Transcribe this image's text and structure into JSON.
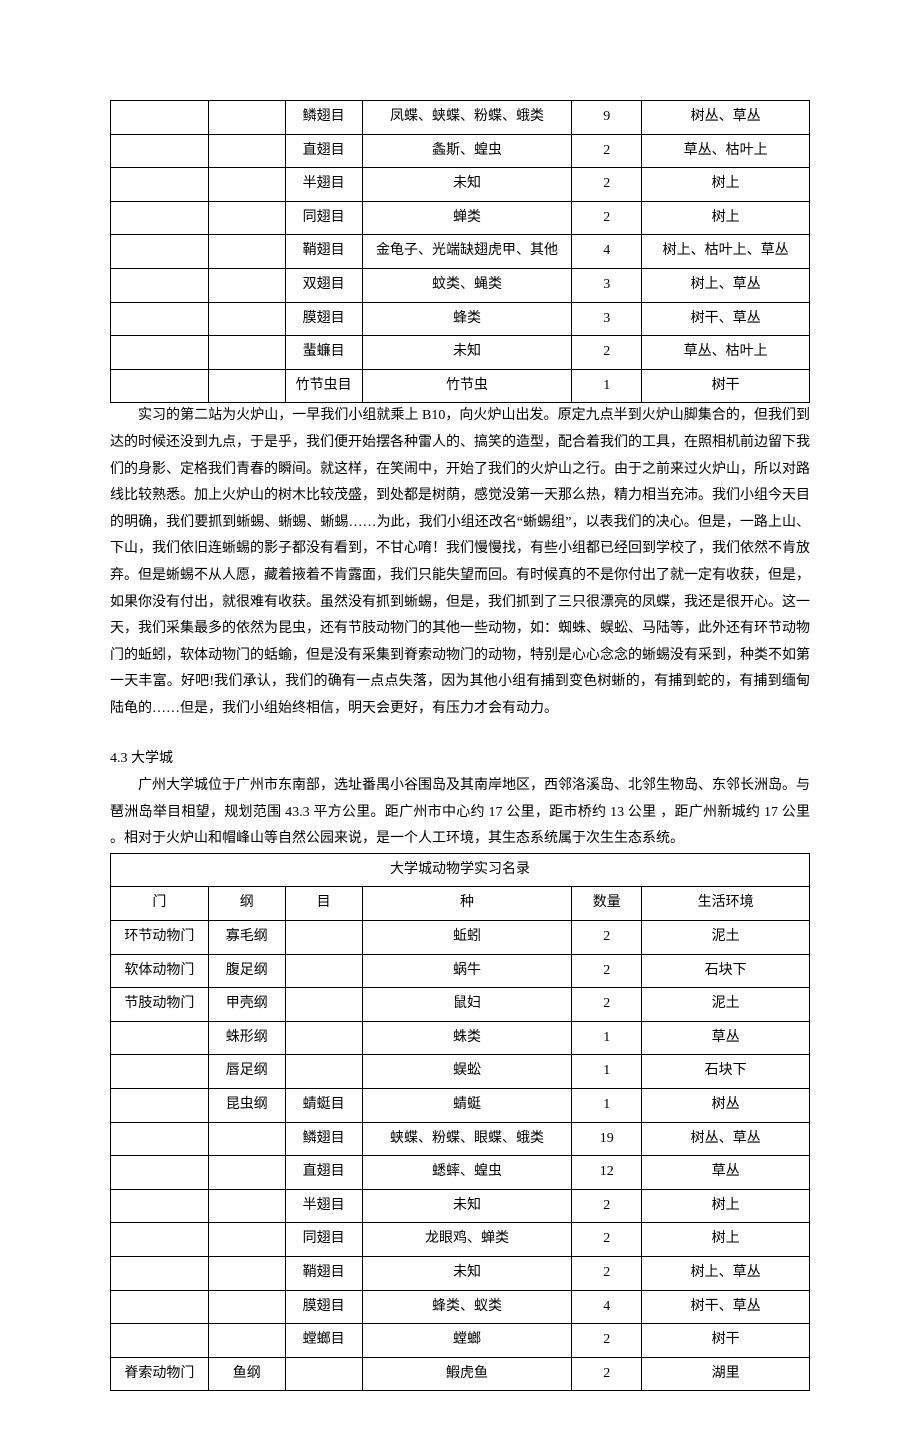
{
  "table1": {
    "rows": [
      {
        "phylum": "",
        "class": "",
        "order": "鳞翅目",
        "species": "凤蝶、蛱蝶、粉蝶、蛾类",
        "count": "9",
        "habitat": "树丛、草丛"
      },
      {
        "phylum": "",
        "class": "",
        "order": "直翅目",
        "species": "螽斯、蝗虫",
        "count": "2",
        "habitat": "草丛、枯叶上"
      },
      {
        "phylum": "",
        "class": "",
        "order": "半翅目",
        "species": "未知",
        "count": "2",
        "habitat": "树上"
      },
      {
        "phylum": "",
        "class": "",
        "order": "同翅目",
        "species": "蝉类",
        "count": "2",
        "habitat": "树上"
      },
      {
        "phylum": "",
        "class": "",
        "order": "鞘翅目",
        "species": "金龟子、光端缺翅虎甲、其他",
        "count": "4",
        "habitat": "树上、枯叶上、草丛"
      },
      {
        "phylum": "",
        "class": "",
        "order": "双翅目",
        "species": "蚊类、蝇类",
        "count": "3",
        "habitat": "树上、草丛"
      },
      {
        "phylum": "",
        "class": "",
        "order": "膜翅目",
        "species": "蜂类",
        "count": "3",
        "habitat": "树干、草丛"
      },
      {
        "phylum": "",
        "class": "",
        "order": "蜚蠊目",
        "species": "未知",
        "count": "2",
        "habitat": "草丛、枯叶上"
      },
      {
        "phylum": "",
        "class": "",
        "order": "竹节虫目",
        "species": "竹节虫",
        "count": "1",
        "habitat": "树干"
      }
    ]
  },
  "paragraph1": "实习的第二站为火炉山，一早我们小组就乘上 B10，向火炉山出发。原定九点半到火炉山脚集合的，但我们到达的时候还没到九点，于是乎，我们便开始摆各种雷人的、搞笑的造型，配合着我们的工具，在照相机前边留下我们的身影、定格我们青春的瞬间。就这样，在笑闹中，开始了我们的火炉山之行。由于之前来过火炉山，所以对路线比较熟悉。加上火炉山的树木比较茂盛，到处都是树荫，感觉没第一天那么热，精力相当充沛。我们小组今天目的明确，我们要抓到蜥蜴、蜥蜴、蜥蜴……为此，我们小组还改名“蜥蜴组”，以表我们的决心。但是，一路上山、下山，我们依旧连蜥蜴的影子都没有看到，不甘心唷！我们慢慢找，有些小组都已经回到学校了，我们依然不肯放弃。但是蜥蜴不从人愿，藏着掖着不肯露面，我们只能失望而回。有时候真的不是你付出了就一定有收获，但是，如果你没有付出，就很难有收获。虽然没有抓到蜥蜴，但是，我们抓到了三只很漂亮的凤蝶，我还是很开心。这一天，我们采集最多的依然为昆虫，还有节肢动物门的其他一些动物，如：蜘蛛、蜈蚣、马陆等，此外还有环节动物门的蚯蚓，软体动物门的蛞蝓，但是没有采集到脊索动物门的动物，特别是心心念念的蜥蜴没有采到，种类不如第一天丰富。好吧!我们承认，我们的确有一点点失落，因为其他小组有捕到变色树蜥的，有捕到蛇的，有捕到缅甸陆龟的……但是，我们小组始终相信，明天会更好，有压力才会有动力。",
  "section_heading": "4.3  大学城",
  "paragraph2": "广州大学城位于广州市东南部，选址番禺小谷围岛及其南岸地区，西邻洛溪岛、北邻生物岛、东邻长洲岛。与琶洲岛举目相望，规划范围 43.3 平方公里。距广州市中心约 17 公里，距市桥约 13 公里 ，距广州新城约 17 公里 。相对于火炉山和帽峰山等自然公园来说，是一个人工环境，其生态系统属于次生生态系统。",
  "table2": {
    "caption": "大学城动物学实习名录",
    "headers": {
      "phylum": "门",
      "class": "纲",
      "order": "目",
      "species": "种",
      "count": "数量",
      "habitat": "生活环境"
    },
    "rows": [
      {
        "phylum": "环节动物门",
        "class": "寡毛纲",
        "order": "",
        "species": "蚯蚓",
        "count": "2",
        "habitat": "泥土"
      },
      {
        "phylum": "软体动物门",
        "class": "腹足纲",
        "order": "",
        "species": "蜗牛",
        "count": "2",
        "habitat": "石块下"
      },
      {
        "phylum": "节肢动物门",
        "class": "甲壳纲",
        "order": "",
        "species": "鼠妇",
        "count": "2",
        "habitat": "泥土"
      },
      {
        "phylum": "",
        "class": "蛛形纲",
        "order": "",
        "species": "蛛类",
        "count": "1",
        "habitat": "草丛"
      },
      {
        "phylum": "",
        "class": "唇足纲",
        "order": "",
        "species": "蜈蚣",
        "count": "1",
        "habitat": "石块下"
      },
      {
        "phylum": "",
        "class": "昆虫纲",
        "order": "蜻蜓目",
        "species": "蜻蜓",
        "count": "1",
        "habitat": "树丛"
      },
      {
        "phylum": "",
        "class": "",
        "order": "鳞翅目",
        "species": "蛱蝶、粉蝶、眼蝶、蛾类",
        "count": "19",
        "habitat": "树丛、草丛"
      },
      {
        "phylum": "",
        "class": "",
        "order": "直翅目",
        "species": "蟋蟀、蝗虫",
        "count": "12",
        "habitat": "草丛"
      },
      {
        "phylum": "",
        "class": "",
        "order": "半翅目",
        "species": "未知",
        "count": "2",
        "habitat": "树上"
      },
      {
        "phylum": "",
        "class": "",
        "order": "同翅目",
        "species": "龙眼鸡、蝉类",
        "count": "2",
        "habitat": "树上"
      },
      {
        "phylum": "",
        "class": "",
        "order": "鞘翅目",
        "species": "未知",
        "count": "2",
        "habitat": "树上、草丛"
      },
      {
        "phylum": "",
        "class": "",
        "order": "膜翅目",
        "species": "蜂类、蚁类",
        "count": "4",
        "habitat": "树干、草丛"
      },
      {
        "phylum": "",
        "class": "",
        "order": "螳螂目",
        "species": "螳螂",
        "count": "2",
        "habitat": "树干"
      },
      {
        "phylum": "脊索动物门",
        "class": "鱼纲",
        "order": "",
        "species": "鰕虎鱼",
        "count": "2",
        "habitat": "湖里"
      }
    ]
  }
}
